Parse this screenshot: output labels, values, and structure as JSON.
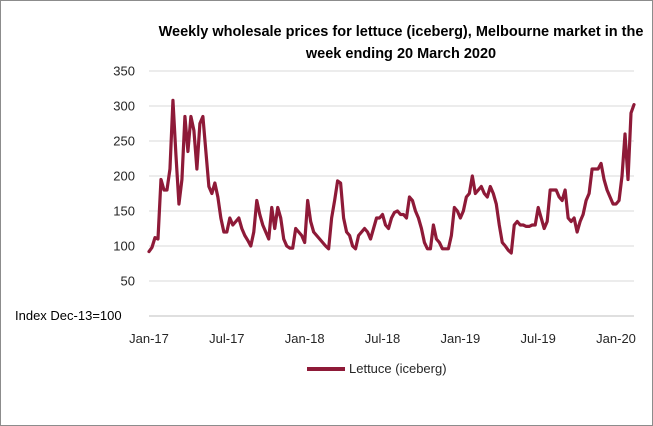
{
  "chart_data": {
    "type": "line",
    "title": "Weekly wholesale prices for lettuce (iceberg), Melbourne market in the\nweek ending 20 March 2020",
    "ylabel": "Index Dec-13=100",
    "ylim": [
      0,
      350
    ],
    "yticks": [
      350,
      300,
      250,
      200,
      150,
      100,
      50
    ],
    "x_tick_labels": [
      "Jan-17",
      "Jul-17",
      "Jan-18",
      "Jul-18",
      "Jan-19",
      "Jul-19",
      "Jan-20"
    ],
    "x_tick_positions": [
      0,
      26,
      52,
      78,
      104,
      130,
      156
    ],
    "grid": true,
    "legend_position": "bottom",
    "series_color": "#8e1a38",
    "series": [
      {
        "name": "Lettuce (iceberg)",
        "values": [
          92,
          98,
          112,
          110,
          195,
          180,
          180,
          210,
          308,
          230,
          160,
          195,
          285,
          235,
          285,
          265,
          210,
          275,
          285,
          235,
          185,
          175,
          190,
          170,
          140,
          120,
          120,
          140,
          130,
          135,
          140,
          125,
          115,
          108,
          100,
          120,
          165,
          145,
          130,
          120,
          110,
          155,
          125,
          155,
          140,
          110,
          100,
          97,
          97,
          125,
          120,
          115,
          105,
          165,
          135,
          120,
          115,
          110,
          105,
          100,
          96,
          140,
          165,
          193,
          190,
          140,
          120,
          115,
          100,
          96,
          115,
          120,
          125,
          120,
          110,
          125,
          140,
          140,
          145,
          130,
          125,
          140,
          148,
          150,
          145,
          145,
          140,
          170,
          165,
          150,
          140,
          125,
          105,
          96,
          96,
          130,
          110,
          105,
          96,
          96,
          96,
          115,
          155,
          150,
          140,
          150,
          170,
          175,
          200,
          175,
          180,
          185,
          175,
          170,
          185,
          175,
          160,
          130,
          105,
          100,
          94,
          90,
          130,
          135,
          130,
          130,
          128,
          128,
          130,
          130,
          155,
          140,
          125,
          135,
          180,
          180,
          180,
          170,
          165,
          180,
          140,
          135,
          140,
          120,
          135,
          145,
          165,
          175,
          210,
          210,
          210,
          218,
          195,
          180,
          170,
          160,
          160,
          165,
          200,
          260,
          195,
          290,
          302
        ]
      }
    ]
  }
}
